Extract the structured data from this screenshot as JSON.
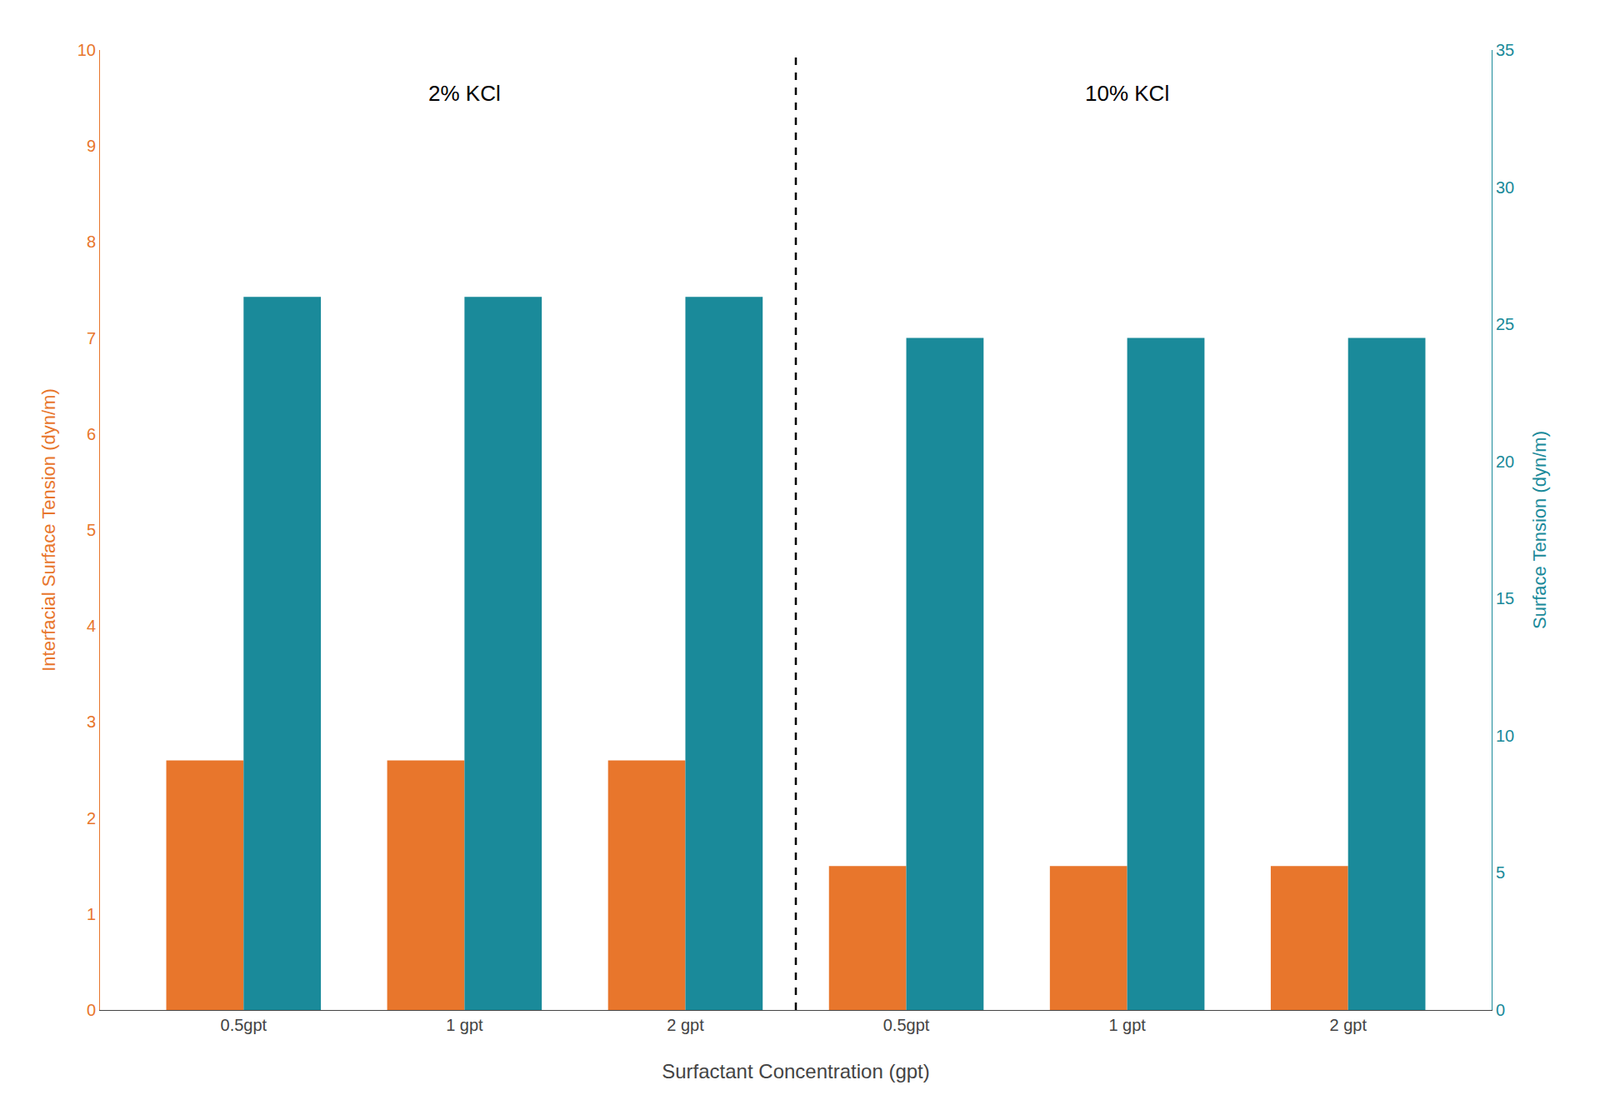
{
  "chart_data": {
    "type": "bar",
    "categories": [
      "0.5gpt",
      "1 gpt",
      "2 gpt",
      "0.5gpt",
      "1 gpt",
      "2 gpt"
    ],
    "series": [
      {
        "color": "#E8762C",
        "values": [
          2.6,
          2.6,
          2.6,
          1.5,
          1.5,
          1.5
        ]
      },
      {
        "color": "#1A8A9A",
        "values": [
          26.0,
          26.0,
          26.0,
          24.5,
          24.5,
          24.5
        ],
        "axis": "y2"
      }
    ],
    "xlabel": "Surfactant Concentration (gpt)",
    "ylabel": "Interfacial Surface Tension (dyn/m)",
    "y2label": "Surface Tension (dyn/m)",
    "ylim": [
      0,
      10
    ],
    "yticks": [
      0,
      1,
      2,
      3,
      4,
      5,
      6,
      7,
      8,
      9,
      10
    ],
    "y2lim": [
      0,
      35
    ],
    "y2ticks": [
      0,
      5,
      10,
      15,
      20,
      25,
      30,
      35
    ],
    "annotations": [
      {
        "text": "2% KCl"
      },
      {
        "text": "10% KCl"
      }
    ],
    "grid": false
  }
}
